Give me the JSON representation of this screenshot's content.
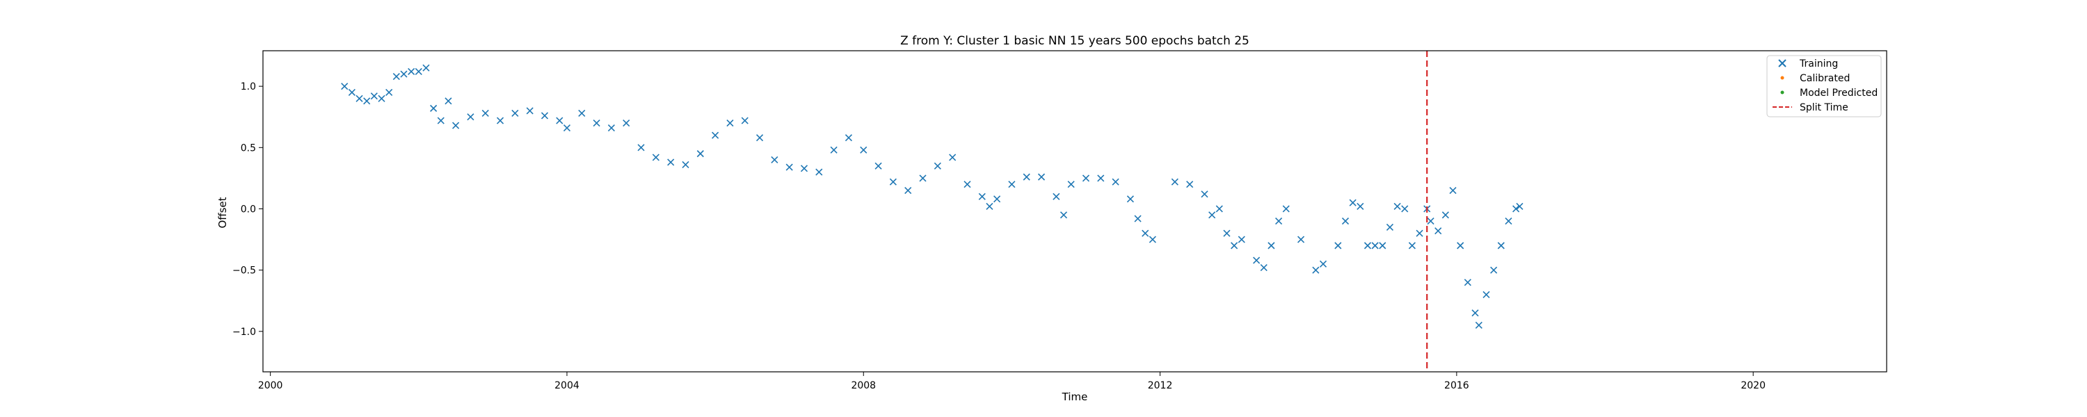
{
  "chart_data": {
    "type": "scatter",
    "title": "Z from Y: Cluster 1 basic NN 15 years 500 epochs batch 25",
    "xlabel": "Time",
    "ylabel": "Offset",
    "xlim": [
      1999.9,
      2021.8
    ],
    "ylim": [
      -1.33,
      1.29
    ],
    "x_ticks": [
      {
        "value": 2000,
        "label": "2000"
      },
      {
        "value": 2004,
        "label": "2004"
      },
      {
        "value": 2008,
        "label": "2008"
      },
      {
        "value": 2012,
        "label": "2012"
      },
      {
        "value": 2016,
        "label": "2016"
      },
      {
        "value": 2020,
        "label": "2020"
      }
    ],
    "y_ticks": [
      {
        "value": -1.0,
        "label": "−1.0"
      },
      {
        "value": -0.5,
        "label": "−0.5"
      },
      {
        "value": 0.0,
        "label": "0.0"
      },
      {
        "value": 0.5,
        "label": "0.5"
      },
      {
        "value": 1.0,
        "label": "1.0"
      }
    ],
    "grid": false,
    "legend_position": "top-right",
    "series": [
      {
        "name": "Training",
        "marker": "x",
        "color": "#1f77b4",
        "points": [
          [
            2001.0,
            1.0
          ],
          [
            2001.1,
            0.95
          ],
          [
            2001.2,
            0.9
          ],
          [
            2001.3,
            0.88
          ],
          [
            2001.4,
            0.92
          ],
          [
            2001.5,
            0.9
          ],
          [
            2001.6,
            0.95
          ],
          [
            2001.7,
            1.08
          ],
          [
            2001.8,
            1.1
          ],
          [
            2001.9,
            1.12
          ],
          [
            2002.0,
            1.12
          ],
          [
            2002.1,
            1.15
          ],
          [
            2002.4,
            0.88
          ],
          [
            2002.2,
            0.82
          ],
          [
            2002.3,
            0.72
          ],
          [
            2002.5,
            0.68
          ],
          [
            2002.7,
            0.75
          ],
          [
            2002.9,
            0.78
          ],
          [
            2003.1,
            0.72
          ],
          [
            2003.3,
            0.78
          ],
          [
            2003.5,
            0.8
          ],
          [
            2003.7,
            0.76
          ],
          [
            2003.9,
            0.72
          ],
          [
            2004.0,
            0.66
          ],
          [
            2004.2,
            0.78
          ],
          [
            2004.4,
            0.7
          ],
          [
            2004.6,
            0.66
          ],
          [
            2004.8,
            0.7
          ],
          [
            2005.0,
            0.5
          ],
          [
            2005.2,
            0.42
          ],
          [
            2005.4,
            0.38
          ],
          [
            2005.6,
            0.36
          ],
          [
            2005.8,
            0.45
          ],
          [
            2006.0,
            0.6
          ],
          [
            2006.2,
            0.7
          ],
          [
            2006.4,
            0.72
          ],
          [
            2006.6,
            0.58
          ],
          [
            2006.8,
            0.4
          ],
          [
            2007.0,
            0.34
          ],
          [
            2007.2,
            0.33
          ],
          [
            2007.4,
            0.3
          ],
          [
            2007.6,
            0.48
          ],
          [
            2007.8,
            0.58
          ],
          [
            2008.0,
            0.48
          ],
          [
            2008.2,
            0.35
          ],
          [
            2008.4,
            0.22
          ],
          [
            2008.6,
            0.15
          ],
          [
            2008.8,
            0.25
          ],
          [
            2009.0,
            0.35
          ],
          [
            2009.2,
            0.42
          ],
          [
            2009.4,
            0.2
          ],
          [
            2009.6,
            0.1
          ],
          [
            2009.7,
            0.02
          ],
          [
            2009.8,
            0.08
          ],
          [
            2010.0,
            0.2
          ],
          [
            2010.2,
            0.26
          ],
          [
            2010.4,
            0.26
          ],
          [
            2010.6,
            0.1
          ],
          [
            2010.7,
            -0.05
          ],
          [
            2010.8,
            0.2
          ],
          [
            2011.0,
            0.25
          ],
          [
            2011.2,
            0.25
          ],
          [
            2011.4,
            0.22
          ],
          [
            2011.6,
            0.08
          ],
          [
            2011.7,
            -0.08
          ],
          [
            2011.8,
            -0.2
          ],
          [
            2011.9,
            -0.25
          ],
          [
            2012.2,
            0.22
          ],
          [
            2012.4,
            0.2
          ],
          [
            2012.6,
            0.12
          ],
          [
            2012.7,
            -0.05
          ],
          [
            2012.8,
            0.0
          ],
          [
            2012.9,
            -0.2
          ],
          [
            2013.0,
            -0.3
          ],
          [
            2013.1,
            -0.25
          ],
          [
            2013.3,
            -0.42
          ],
          [
            2013.4,
            -0.48
          ],
          [
            2013.5,
            -0.3
          ],
          [
            2013.6,
            -0.1
          ],
          [
            2013.7,
            0.0
          ],
          [
            2013.9,
            -0.25
          ],
          [
            2014.1,
            -0.5
          ],
          [
            2014.2,
            -0.45
          ],
          [
            2014.4,
            -0.3
          ],
          [
            2014.5,
            -0.1
          ],
          [
            2014.6,
            0.05
          ],
          [
            2014.7,
            0.02
          ],
          [
            2014.8,
            -0.3
          ],
          [
            2014.9,
            -0.3
          ],
          [
            2015.0,
            -0.3
          ],
          [
            2015.1,
            -0.15
          ],
          [
            2015.2,
            0.02
          ],
          [
            2015.3,
            0.0
          ],
          [
            2015.4,
            -0.3
          ],
          [
            2015.5,
            -0.2
          ],
          [
            2015.6,
            0.0
          ],
          [
            2015.65,
            -0.1
          ],
          [
            2015.75,
            -0.18
          ],
          [
            2015.85,
            -0.05
          ],
          [
            2015.95,
            0.15
          ],
          [
            2016.05,
            -0.3
          ],
          [
            2016.15,
            -0.6
          ],
          [
            2016.25,
            -0.85
          ],
          [
            2016.3,
            -0.95
          ],
          [
            2016.4,
            -0.7
          ],
          [
            2016.5,
            -0.5
          ],
          [
            2016.6,
            -0.3
          ],
          [
            2016.7,
            -0.1
          ],
          [
            2016.8,
            0.0
          ],
          [
            2016.85,
            0.02
          ]
        ]
      },
      {
        "name": "Calibrated",
        "marker": "dot",
        "color": "#ff7f0e",
        "points": []
      },
      {
        "name": "Model Predicted",
        "marker": "dot",
        "color": "#2ca02c",
        "points": []
      }
    ],
    "vline": {
      "name": "Split Time",
      "x": 2015.6,
      "color": "#d62728",
      "style": "dashed"
    }
  }
}
